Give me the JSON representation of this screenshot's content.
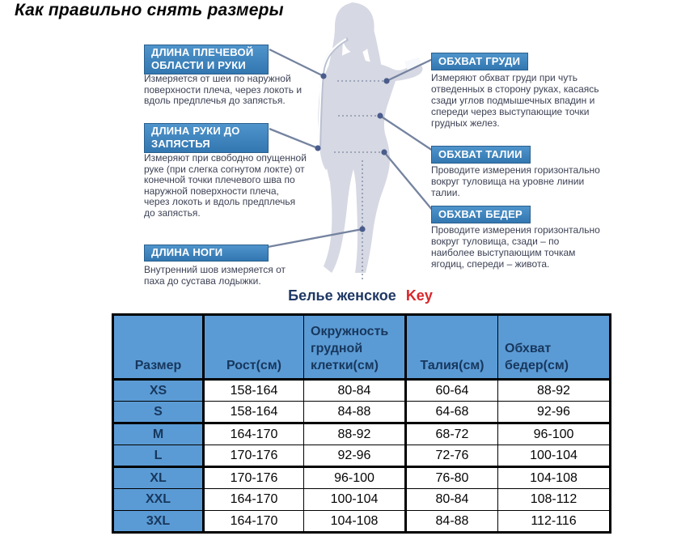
{
  "page_title": "Как правильно снять размеры",
  "diagram": {
    "figure": "female-body-silhouette",
    "labels_left": [
      {
        "title": "ДЛИНА ПЛЕЧЕВОЙ ОБЛАСТИ И РУКИ",
        "description": "Измеряется от шеи по наружной поверхности плеча, через локоть и вдоль предплечья до запястья."
      },
      {
        "title": "ДЛИНА РУКИ ДО ЗАПЯСТЬЯ",
        "description": "Измеряют при свободно опущенной руке (при слегка согнутом локте) от конечной точки плечевого шва по наружной поверхности плеча, через локоть и вдоль предплечья до запястья."
      },
      {
        "title": "ДЛИНА НОГИ",
        "description": "Внутренний шов измеряется от паха до сустава лодыжки."
      }
    ],
    "labels_right": [
      {
        "title": "ОБХВАТ ГРУДИ",
        "description": "Измеряют обхват груди при чуть отведенных в сторону руках, касаясь сзади углов подмышечных впадин и спереди через выступающие точки грудных желез."
      },
      {
        "title": "ОБХВАТ ТАЛИИ",
        "description": "Проводите измерения горизонтально вокруг туловища на уровне линии талии."
      },
      {
        "title": "ОБХВАТ БЕДЕР",
        "description": "Проводите измерения горизонтально вокруг туловища, сзади – по наиболее выступающим точкам ягодиц, спереди – живота."
      }
    ]
  },
  "table": {
    "title": "Белье женское",
    "title_suffix": "Key",
    "headers": [
      "Размер",
      "Рост(см)",
      "Окружность грудной клетки(см)",
      "Талия(см)",
      "Обхват бедер(см)"
    ],
    "rows": [
      [
        "XS",
        "158-164",
        "80-84",
        "60-64",
        "88-92"
      ],
      [
        "S",
        "158-164",
        "84-88",
        "64-68",
        "92-96"
      ],
      [
        "M",
        "164-170",
        "88-92",
        "68-72",
        "96-100"
      ],
      [
        "L",
        "170-176",
        "92-96",
        "72-76",
        "100-104"
      ],
      [
        "XL",
        "170-176",
        "96-100",
        "76-80",
        "104-108"
      ],
      [
        "XXL",
        "164-170",
        "100-104",
        "80-84",
        "108-112"
      ],
      [
        "3XL",
        "164-170",
        "104-108",
        "84-88",
        "112-116"
      ]
    ]
  },
  "colors": {
    "table_header_blue": "#5b9bd5",
    "table_text_navy": "#17375d",
    "title_navy": "#1f3864",
    "key_red": "#d9262b",
    "label_box_blue_top": "#4f94cb",
    "label_box_blue_bottom": "#3377b1",
    "silhouette_gray": "#d6d8e3",
    "connector_blue": "#74839f",
    "dot_blue": "#4a5c8c"
  }
}
